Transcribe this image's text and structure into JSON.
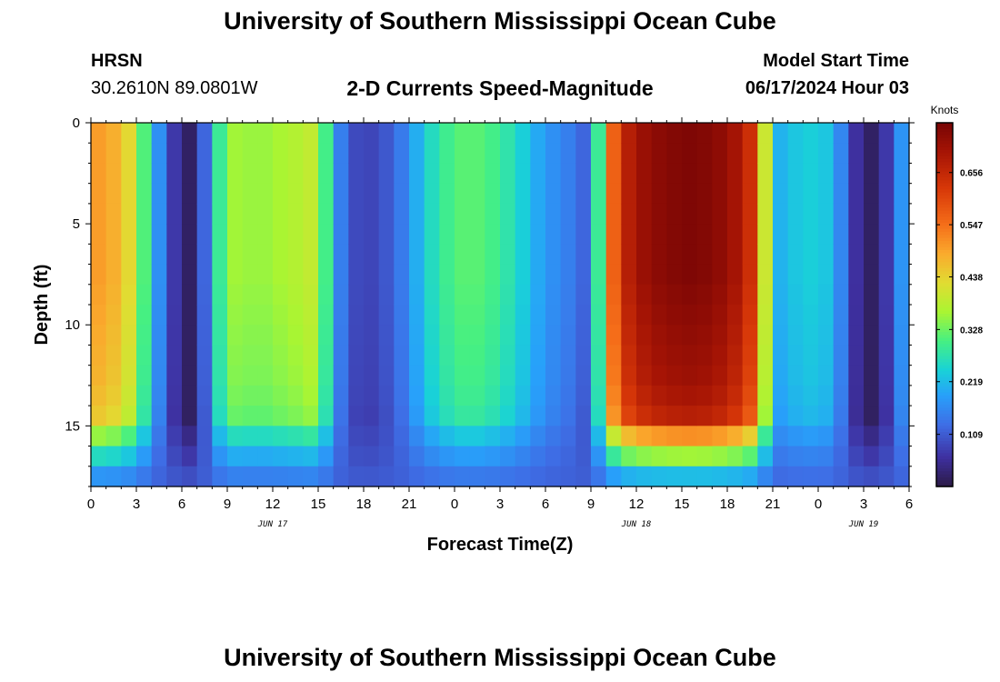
{
  "header": {
    "title": "University of Southern Mississippi Ocean Cube",
    "station": "HRSN",
    "coordinates": "30.2610N  89.0801W",
    "plot_title": "2-D Currents Speed-Magnitude",
    "model_start_label": "Model Start Time",
    "model_start_value": "06/17/2024 Hour 03"
  },
  "footer": {
    "title": "University of Southern Mississippi Ocean Cube"
  },
  "chart_data": {
    "type": "heatmap",
    "title": "2-D Currents Speed-Magnitude",
    "xlabel": "Forecast Time(Z)",
    "ylabel": "Depth (ft)",
    "x_start_hour": 0,
    "x_end_hour": 54,
    "x_step_hours": 1,
    "x_tick_labels": [
      "0",
      "3",
      "6",
      "9",
      "12",
      "15",
      "18",
      "21",
      "0",
      "3",
      "6",
      "9",
      "12",
      "15",
      "18",
      "21",
      "0",
      "3",
      "6"
    ],
    "date_labels": [
      {
        "label": "JUN 17",
        "hour": 12
      },
      {
        "label": "JUN 18",
        "hour": 36
      },
      {
        "label": "JUN 19",
        "hour": 51
      }
    ],
    "y_ticks": [
      0,
      5,
      10,
      15
    ],
    "ylim": [
      0,
      18
    ],
    "depth_levels": 18,
    "colorbar": {
      "label": "Knots",
      "min": 0.0,
      "max": 0.76,
      "ticks": [
        0.109,
        0.219,
        0.328,
        0.438,
        0.547,
        0.656
      ]
    },
    "speed_profile_by_hour": [
      0.5,
      0.5,
      0.46,
      0.4,
      0.22,
      0.12,
      0.02,
      0.02,
      0.22,
      0.36,
      0.36,
      0.35,
      0.36,
      0.37,
      0.38,
      0.4,
      0.2,
      0.1,
      0.08,
      0.09,
      0.12,
      0.17,
      0.24,
      0.28,
      0.31,
      0.32,
      0.31,
      0.29,
      0.26,
      0.22,
      0.18,
      0.16,
      0.14,
      0.1,
      0.48,
      0.65,
      0.7,
      0.73,
      0.74,
      0.75,
      0.75,
      0.74,
      0.72,
      0.68,
      0.6,
      0.2,
      0.22,
      0.24,
      0.24,
      0.22,
      0.1,
      0.02,
      0.02,
      0.12,
      0.23
    ],
    "depth_factor": [
      1.0,
      1.0,
      1.0,
      1.0,
      1.0,
      1.0,
      1.0,
      1.0,
      0.99,
      0.98,
      0.97,
      0.96,
      0.95,
      0.93,
      0.9,
      0.86,
      0.8,
      0.7
    ],
    "near_bottom_floor": {
      "from_level": 15,
      "value": 0.12
    }
  }
}
